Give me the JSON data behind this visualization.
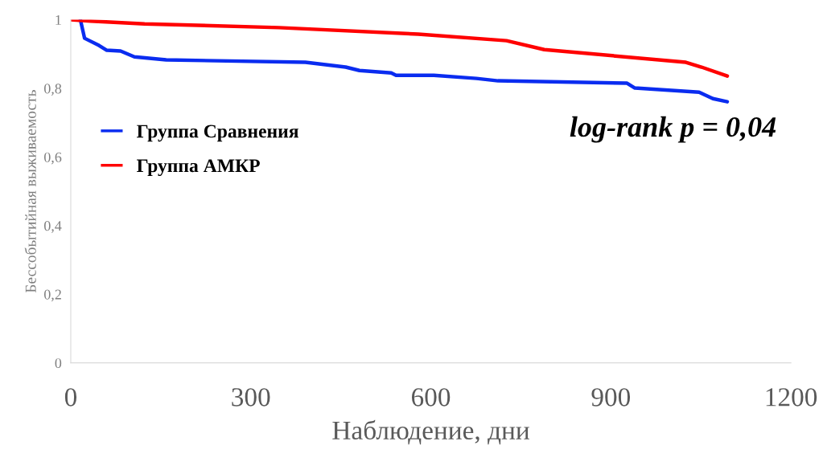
{
  "chart_data": {
    "type": "line",
    "xlabel": "Наблюдение, дни",
    "ylabel": "Бессобытийная выживаемость",
    "series": [
      {
        "name": "Группа Сравнения",
        "color": "#0a2cf0",
        "x": [
          16,
          23,
          47,
          60,
          83,
          106,
          159,
          391,
          458,
          481,
          534,
          542,
          605,
          676,
          712,
          927,
          940,
          1047,
          1070,
          1094
        ],
        "values": [
          1,
          0.946,
          0.925,
          0.911,
          0.909,
          0.892,
          0.883,
          0.876,
          0.862,
          0.852,
          0.845,
          0.838,
          0.838,
          0.829,
          0.822,
          0.815,
          0.801,
          0.789,
          0.77,
          0.761
        ]
      },
      {
        "name": "Группа АМКР",
        "color": "#ff0000",
        "x": [
          0,
          33,
          123,
          347,
          579,
          726,
          789,
          1025,
          1051,
          1094
        ],
        "values": [
          1,
          0.996,
          0.988,
          0.977,
          0.958,
          0.939,
          0.913,
          0.876,
          0.862,
          0.836
        ]
      }
    ],
    "xlim": [
      0,
      1200
    ],
    "xticks": [
      0,
      300,
      600,
      900,
      1200
    ],
    "ylim": [
      0,
      1
    ],
    "yticks": [
      0,
      {
        "value": 0.2,
        "label": "0,2"
      },
      {
        "value": 0.4,
        "label": "0,4"
      },
      {
        "value": 0.6,
        "label": "0,6"
      },
      {
        "value": 0.8,
        "label": "0,8"
      },
      1
    ],
    "grid": false,
    "legend": "center left",
    "marker": "none",
    "line_style": "solid",
    "annotations": [
      "log-rank p = 0,04"
    ]
  }
}
